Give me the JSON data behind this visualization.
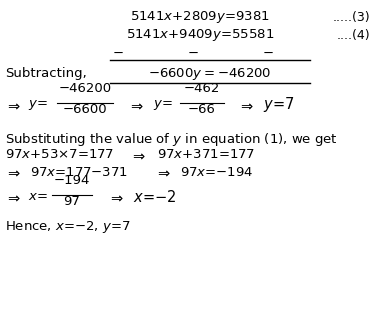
{
  "background_color": "#ffffff",
  "figsize": [
    3.88,
    3.35
  ],
  "dpi": 100,
  "eq3_text": "5141$x$+2809$y$=9381",
  "eq3_label": ".....(3)",
  "eq4_text": "5141$x$+9409$y$=55581",
  "eq4_label": "....(4)",
  "subtracting_label": "Subtracting,",
  "subtracting_result": "−6600$y$ = −46200",
  "line1_text": "97$x$+53×7=177  ⇒  97$x$+371=177",
  "line2_text": "⇒  97$x$=177−371  ⇒  97$x$=−194",
  "hence_text": "Hence, $x$=−2, $y$=7",
  "substituting_text": "Substituting the value of $y$ in equation (1), we get"
}
